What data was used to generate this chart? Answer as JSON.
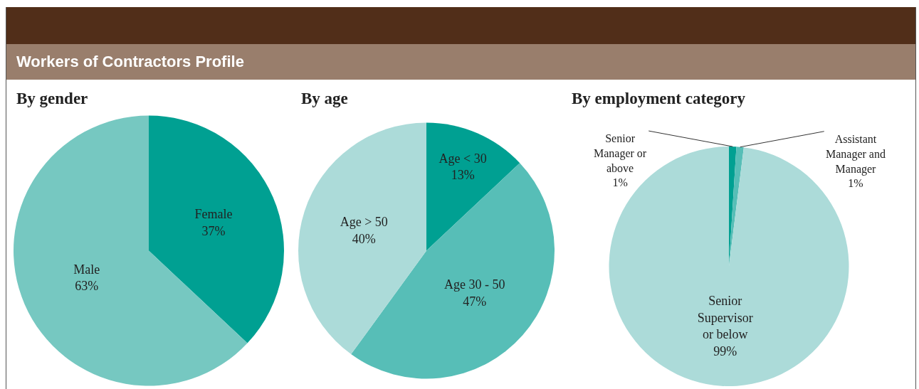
{
  "chart_data": [
    {
      "type": "pie",
      "title": "By gender",
      "annotations": [
        "Workers of Contractors Profile"
      ],
      "categories": [
        "Female",
        "Male"
      ],
      "values": [
        37,
        63
      ],
      "colors": [
        "#00a092",
        "#76c8c1"
      ],
      "value_labels": [
        "37%",
        "63%"
      ]
    },
    {
      "type": "pie",
      "title": "By age",
      "categories": [
        "Age < 30",
        "Age 30 - 50",
        "Age > 50"
      ],
      "values": [
        13,
        47,
        40
      ],
      "colors": [
        "#00a092",
        "#57beb7",
        "#acdbd9"
      ],
      "value_labels": [
        "13%",
        "47%",
        "40%"
      ]
    },
    {
      "type": "pie",
      "title": "By employment category",
      "categories": [
        "Senior Manager or above",
        "Assistant Manager and Manager",
        "Senior Supervisor or below"
      ],
      "values": [
        1,
        1,
        99
      ],
      "colors": [
        "#00a092",
        "#57beb7",
        "#acdbd9"
      ],
      "value_labels": [
        "1%",
        "1%",
        "99%"
      ]
    }
  ]
}
